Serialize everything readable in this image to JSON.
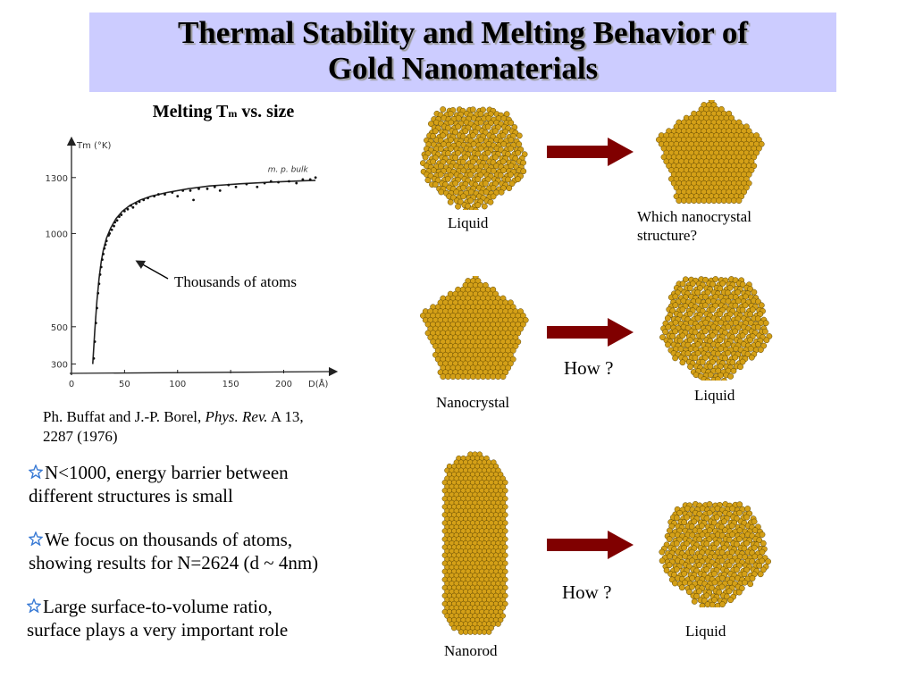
{
  "title": {
    "line1": "Thermal Stability and Melting Behavior of",
    "line2": "Gold Nanomaterials"
  },
  "chart_heading": {
    "prefix": "Melting T",
    "subscript": "m",
    "suffix": " vs. size"
  },
  "chart_data": {
    "type": "scatter",
    "ylabel": "Tm (°K)",
    "xlabel": "D(Å)",
    "x_ticks": [
      "0",
      "50",
      "100",
      "150",
      "200"
    ],
    "y_ticks": [
      "300",
      "500",
      "1000",
      "1300"
    ],
    "xlim": [
      0,
      240
    ],
    "ylim": [
      250,
      1390
    ],
    "annotation": "m. p. bulk",
    "curve": [
      [
        20,
        300
      ],
      [
        22,
        480
      ],
      [
        24,
        640
      ],
      [
        26,
        760
      ],
      [
        28,
        850
      ],
      [
        30,
        910
      ],
      [
        33,
        975
      ],
      [
        37,
        1030
      ],
      [
        42,
        1080
      ],
      [
        48,
        1120
      ],
      [
        55,
        1150
      ],
      [
        65,
        1180
      ],
      [
        75,
        1200
      ],
      [
        90,
        1220
      ],
      [
        110,
        1240
      ],
      [
        130,
        1255
      ],
      [
        160,
        1267
      ],
      [
        190,
        1276
      ],
      [
        220,
        1283
      ],
      [
        230,
        1285
      ]
    ],
    "points": [
      [
        21,
        330
      ],
      [
        22,
        420
      ],
      [
        23,
        520
      ],
      [
        24,
        600
      ],
      [
        25,
        680
      ],
      [
        26,
        730
      ],
      [
        27,
        780
      ],
      [
        28,
        820
      ],
      [
        29,
        860
      ],
      [
        30,
        890
      ],
      [
        31,
        920
      ],
      [
        32,
        940
      ],
      [
        33,
        960
      ],
      [
        35,
        990
      ],
      [
        36,
        1000
      ],
      [
        38,
        1020
      ],
      [
        40,
        1040
      ],
      [
        41,
        1060
      ],
      [
        43,
        1070
      ],
      [
        45,
        1090
      ],
      [
        47,
        1100
      ],
      [
        50,
        1120
      ],
      [
        53,
        1130
      ],
      [
        56,
        1150
      ],
      [
        58,
        1140
      ],
      [
        61,
        1160
      ],
      [
        64,
        1170
      ],
      [
        68,
        1180
      ],
      [
        72,
        1190
      ],
      [
        78,
        1200
      ],
      [
        82,
        1210
      ],
      [
        88,
        1210
      ],
      [
        95,
        1220
      ],
      [
        100,
        1200
      ],
      [
        105,
        1230
      ],
      [
        112,
        1230
      ],
      [
        115,
        1180
      ],
      [
        120,
        1240
      ],
      [
        128,
        1240
      ],
      [
        135,
        1250
      ],
      [
        140,
        1230
      ],
      [
        148,
        1260
      ],
      [
        155,
        1250
      ],
      [
        165,
        1265
      ],
      [
        175,
        1250
      ],
      [
        182,
        1270
      ],
      [
        188,
        1280
      ],
      [
        195,
        1275
      ],
      [
        205,
        1280
      ],
      [
        212,
        1270
      ],
      [
        218,
        1290
      ],
      [
        225,
        1290
      ],
      [
        230,
        1300
      ]
    ]
  },
  "chart_note": "Thousands of atoms",
  "citation": {
    "prefix": "Ph. Buffat and J.-P. Borel, ",
    "journal": "Phys. Rev.",
    "suffix": " A 13,",
    "line2": "2287 (1976)"
  },
  "bullets": [
    {
      "line1": "N<1000, energy barrier between",
      "line2": "different structures is small"
    },
    {
      "line1": "We focus on thousands of atoms,",
      "line2": "showing results for N=2624 (d ~ 4nm)"
    },
    {
      "line1": "Large surface-to-volume ratio,",
      "line2": "surface plays a very important role"
    }
  ],
  "rows": [
    {
      "left_label": "Liquid",
      "right_label_1": "Which nanocrystal",
      "right_label_2": "structure?",
      "question": ""
    },
    {
      "left_label": "Nanocrystal",
      "right_label_1": "Liquid",
      "right_label_2": "",
      "question": "How ?"
    },
    {
      "left_label": "Nanorod",
      "right_label_1": "Liquid",
      "right_label_2": "",
      "question": "How ?"
    }
  ],
  "colors": {
    "title_bg": "#ccccff",
    "arrow": "#800000",
    "gold": "#d4a017",
    "bullet_star": "#3a7bd5"
  }
}
